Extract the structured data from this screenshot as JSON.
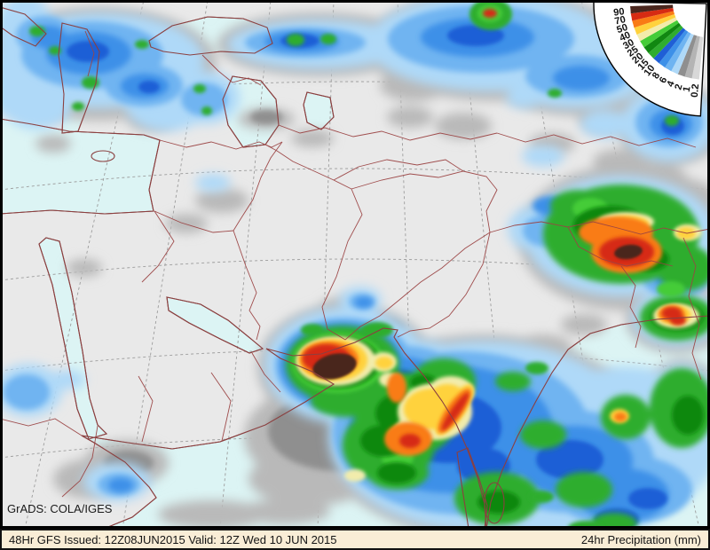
{
  "status_bar": {
    "issued": "48Hr GFS Issued: 12Z08JUN2015 Valid: 12Z Wed 10 JUN 2015",
    "product": "24hr Precipitation (mm)"
  },
  "map": {
    "credit": "GrADS: COLA/IGES"
  },
  "legend": {
    "labels_low_to_high": [
      "0.2",
      "1",
      "2",
      "4",
      "6",
      "8",
      "10",
      "15",
      "20",
      "25",
      "30",
      "40",
      "50",
      "70",
      "90"
    ],
    "wedge_colors_low_to_high": [
      "#D8D8D8",
      "#B4B4B4",
      "#8F8F8F",
      "#AFD9F8",
      "#6FB4F1",
      "#3D90E8",
      "#1F5FD6",
      "#2FAD2F",
      "#118811",
      "#45CC38",
      "#F2ECAC",
      "#FFD23C",
      "#F97B14",
      "#D62B13",
      "#4A261D"
    ]
  },
  "colors": {
    "land": "#E9E9E9",
    "water": "#DCF4F4",
    "coastline": "#8B4040",
    "bar_background": "#F9EDD6",
    "frame": "#000000"
  }
}
